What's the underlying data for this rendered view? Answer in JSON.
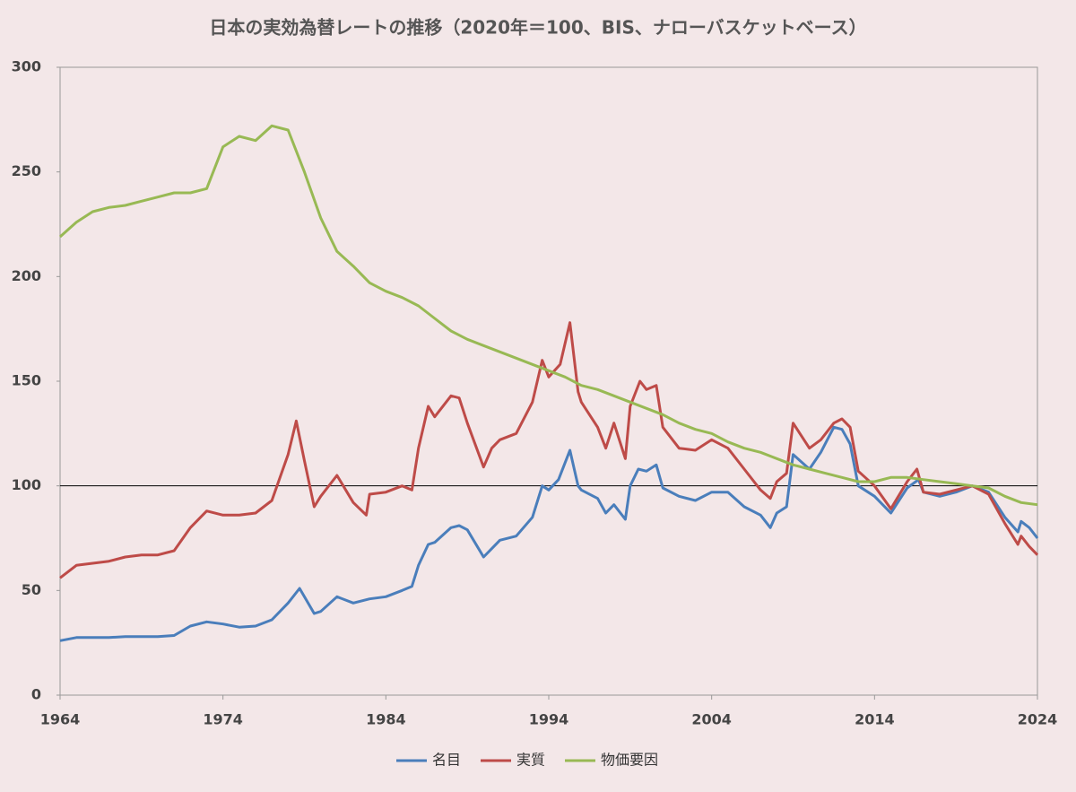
{
  "chart_data": {
    "type": "line",
    "title": "日本の実効為替レートの推移（2020年＝100、BIS、ナローバスケットベース）",
    "xlim": [
      1964,
      2024
    ],
    "xticks": [
      1964,
      1974,
      1984,
      1994,
      2004,
      2014,
      2024
    ],
    "ylim": [
      0,
      300
    ],
    "yticks": [
      0,
      50,
      100,
      150,
      200,
      250,
      300
    ],
    "reference_line": 100,
    "legend": "bottom",
    "series": [
      {
        "name": "名目",
        "color": "#4a7ebb",
        "x": [
          1964,
          1965,
          1966,
          1967,
          1968,
          1969,
          1970,
          1971,
          1972,
          1973,
          1974,
          1975,
          1976,
          1977,
          1978,
          1978.7,
          1979,
          1979.6,
          1980,
          1981,
          1982,
          1983,
          1984,
          1985,
          1985.6,
          1986,
          1986.6,
          1987,
          1988,
          1988.5,
          1989,
          1990,
          1990.5,
          1991,
          1992,
          1993,
          1993.6,
          1994,
          1994.6,
          1995.3,
          1995.8,
          1996,
          1997,
          1997.5,
          1998,
          1998.7,
          1999,
          1999.5,
          2000,
          2000.6,
          2001,
          2002,
          2003,
          2004,
          2005,
          2006,
          2007,
          2007.6,
          2008,
          2008.6,
          2009,
          2010,
          2010.7,
          2011.5,
          2012,
          2012.5,
          2013,
          2014,
          2015,
          2016,
          2016.7,
          2017,
          2018,
          2019,
          2020,
          2021,
          2022,
          2022.8,
          2023,
          2023.5,
          2024
        ],
        "values": [
          26,
          27.5,
          27.5,
          27.5,
          28,
          28,
          28,
          28.5,
          33,
          35,
          34,
          32.5,
          33,
          36,
          44,
          51,
          47,
          39,
          40,
          47,
          44,
          46,
          47,
          50,
          52,
          62,
          72,
          73,
          80,
          81,
          79,
          66,
          70,
          74,
          76,
          85,
          100,
          98,
          103,
          117,
          100,
          98,
          94,
          87,
          91,
          84,
          100,
          108,
          107,
          110,
          99,
          95,
          93,
          97,
          97,
          90,
          86,
          80,
          87,
          90,
          115,
          108,
          116,
          128,
          127,
          120,
          100,
          95,
          87,
          99,
          103,
          97,
          95,
          97,
          100,
          97,
          85,
          78,
          83,
          80,
          75
        ]
      },
      {
        "name": "実質",
        "color": "#be4b48",
        "x": [
          1964,
          1965,
          1966,
          1967,
          1968,
          1969,
          1970,
          1971,
          1972,
          1973,
          1974,
          1975,
          1976,
          1977,
          1978,
          1978.5,
          1979,
          1979.6,
          1980,
          1981,
          1982,
          1982.8,
          1983,
          1984,
          1985,
          1985.6,
          1986,
          1986.6,
          1987,
          1988,
          1988.5,
          1989,
          1990,
          1990.5,
          1991,
          1992,
          1993,
          1993.6,
          1994,
          1994.7,
          1995.3,
          1995.8,
          1996,
          1997,
          1997.5,
          1998,
          1998.7,
          1999,
          1999.6,
          2000,
          2000.6,
          2001,
          2002,
          2003,
          2004,
          2005,
          2006,
          2007,
          2007.6,
          2008,
          2008.6,
          2009,
          2010,
          2010.7,
          2011.5,
          2012,
          2012.5,
          2013,
          2014,
          2015,
          2016,
          2016.6,
          2017,
          2018,
          2019,
          2020,
          2021,
          2022,
          2022.8,
          2023,
          2023.5,
          2024
        ],
        "values": [
          56,
          62,
          63,
          64,
          66,
          67,
          67,
          69,
          80,
          88,
          86,
          86,
          87,
          93,
          115,
          131,
          112,
          90,
          95,
          105,
          92,
          86,
          96,
          97,
          100,
          98,
          118,
          138,
          133,
          143,
          142,
          130,
          109,
          118,
          122,
          125,
          140,
          160,
          152,
          158,
          178,
          145,
          140,
          128,
          118,
          130,
          113,
          138,
          150,
          146,
          148,
          128,
          118,
          117,
          122,
          118,
          108,
          98,
          94,
          102,
          106,
          130,
          118,
          122,
          130,
          132,
          128,
          107,
          100,
          89,
          102,
          108,
          97,
          96,
          98,
          100,
          96,
          82,
          72,
          76,
          71,
          67
        ]
      },
      {
        "name": "物価要因",
        "color": "#98b954",
        "x": [
          1964,
          1965,
          1966,
          1967,
          1968,
          1969,
          1970,
          1971,
          1972,
          1973,
          1974,
          1975,
          1976,
          1977,
          1978,
          1979,
          1980,
          1981,
          1982,
          1983,
          1984,
          1985,
          1986,
          1987,
          1988,
          1989,
          1990,
          1991,
          1992,
          1993,
          1994,
          1995,
          1996,
          1997,
          1998,
          1999,
          2000,
          2001,
          2002,
          2003,
          2004,
          2005,
          2006,
          2007,
          2008,
          2009,
          2010,
          2011,
          2012,
          2013,
          2014,
          2015,
          2016,
          2017,
          2018,
          2019,
          2020,
          2021,
          2022,
          2023,
          2024
        ],
        "values": [
          219,
          226,
          231,
          233,
          234,
          236,
          238,
          240,
          240,
          242,
          262,
          267,
          265,
          272,
          270,
          250,
          228,
          212,
          205,
          197,
          193,
          190,
          186,
          180,
          174,
          170,
          167,
          164,
          161,
          158,
          155,
          152,
          148,
          146,
          143,
          140,
          137,
          134,
          130,
          127,
          125,
          121,
          118,
          116,
          113,
          110,
          108,
          106,
          104,
          102,
          102,
          104,
          104,
          103,
          102,
          101,
          100,
          99,
          95,
          92,
          91
        ]
      }
    ]
  }
}
